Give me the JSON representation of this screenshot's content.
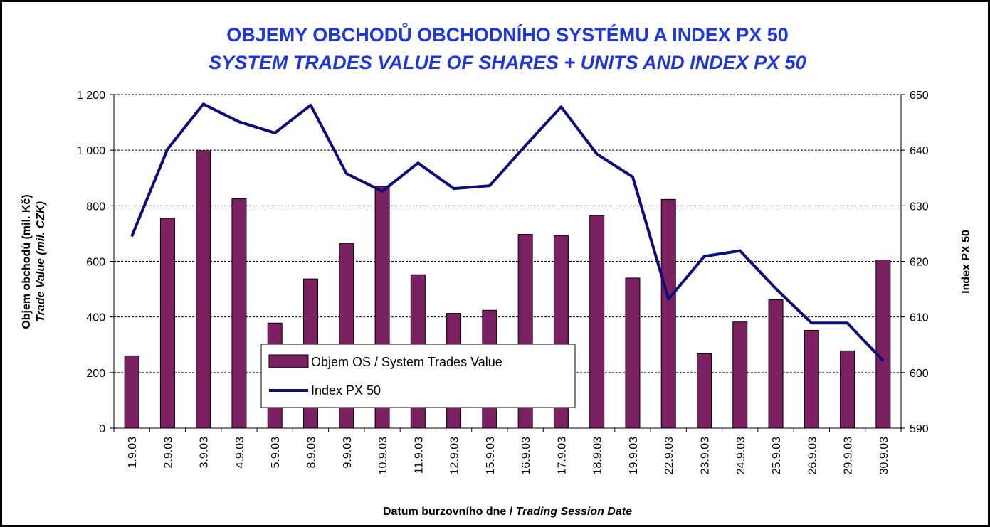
{
  "chart_data": {
    "type": "bar-line",
    "title": "OBJEMY OBCHODŮ OBCHODNÍHO SYSTÉMU A INDEX PX 50",
    "subtitle": "SYSTEM  TRADES VALUE OF SHARES + UNITS AND INDEX PX 50",
    "y_label": "Objem obchodů (mil. Kč)",
    "y_label_en": "Trade Value (mil. CZK)",
    "y2_label": "Index PX 50",
    "x_label": "Datum burzovního dne / ",
    "x_label_en": "Trading Session Date",
    "categories": [
      "1.9.03",
      "2.9.03",
      "3.9.03",
      "4.9.03",
      "5.9.03",
      "8.9.03",
      "9.9.03",
      "10.9.03",
      "11.9.03",
      "12.9.03",
      "15.9.03",
      "16.9.03",
      "17.9.03",
      "18.9.03",
      "19.9.03",
      "22.9.03",
      "23.9.03",
      "24.9.03",
      "25.9.03",
      "26.9.03",
      "29.9.03",
      "30.9.03"
    ],
    "series": [
      {
        "name": "Objem OS / System Trades Value",
        "type": "bar",
        "color": "#7b2060",
        "values": [
          260,
          755,
          998,
          825,
          378,
          537,
          665,
          870,
          552,
          413,
          424,
          697,
          693,
          765,
          540,
          823,
          268,
          382,
          462,
          352,
          278,
          605
        ]
      },
      {
        "name": "Index PX 50",
        "type": "line",
        "axis": "y2",
        "color": "#0d0d78",
        "values": [
          624.5,
          640.2,
          648.3,
          645.1,
          643.1,
          648.1,
          635.8,
          632.6,
          637.7,
          633.1,
          633.6,
          640.8,
          647.8,
          639.3,
          635.2,
          613.2,
          620.9,
          621.9,
          615.1,
          608.9,
          608.9,
          602.1
        ]
      }
    ],
    "ylim": [
      0,
      1200
    ],
    "yticks": [
      0,
      200,
      400,
      600,
      800,
      {
        "value": 1000,
        "label": "1 000"
      },
      {
        "value": 1200,
        "label": "1 200"
      }
    ],
    "y2lim": [
      590,
      650
    ],
    "y2ticks": [
      590,
      600,
      610,
      620,
      630,
      640,
      650
    ],
    "grid": true
  }
}
